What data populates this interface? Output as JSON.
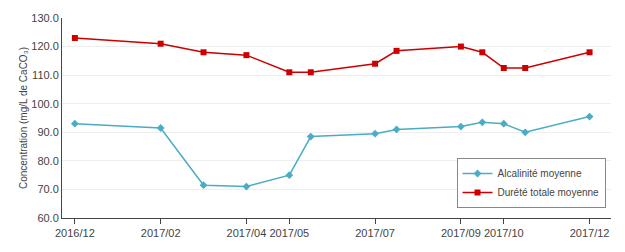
{
  "chart_data": {
    "type": "line",
    "x": [
      0,
      2,
      3,
      4,
      5,
      5.5,
      7,
      7.5,
      9,
      9.5,
      10,
      10.5,
      12
    ],
    "xlim": [
      -0.3,
      12.5
    ],
    "xticks": [
      {
        "value": 0,
        "label": "2016/12"
      },
      {
        "value": 2,
        "label": "2017/02"
      },
      {
        "value": 4,
        "label": "2017/04"
      },
      {
        "value": 5,
        "label": "2017/05"
      },
      {
        "value": 7,
        "label": "2017/07"
      },
      {
        "value": 9,
        "label": "2017/09"
      },
      {
        "value": 10,
        "label": "2017/10"
      },
      {
        "value": 12,
        "label": "2017/12"
      }
    ],
    "ylabel": "Concentration (mg/L de CaCO₃)",
    "ylim": [
      60.0,
      130.0
    ],
    "yticks": [
      {
        "value": 60,
        "label": "60.0"
      },
      {
        "value": 70,
        "label": "70.0"
      },
      {
        "value": 80,
        "label": "80.0"
      },
      {
        "value": 90,
        "label": "90.0"
      },
      {
        "value": 100,
        "label": "100.0"
      },
      {
        "value": 110,
        "label": "110.0"
      },
      {
        "value": 120,
        "label": "120.0"
      },
      {
        "value": 130,
        "label": "130.0"
      }
    ],
    "grid": "y",
    "legend": "lower right",
    "series": [
      {
        "name": "Alcalinité moyenne",
        "color": "#4BACC6",
        "marker": "diamond",
        "values": [
          93.0,
          91.5,
          71.5,
          71.0,
          75.0,
          88.5,
          89.5,
          91.0,
          92.0,
          93.5,
          93.0,
          90.0,
          95.5
        ]
      },
      {
        "name": "Durété totale moyenne",
        "color": "#CC0000",
        "marker": "square",
        "values": [
          123.0,
          121.0,
          118.0,
          117.0,
          111.0,
          111.0,
          114.0,
          118.5,
          120.0,
          118.0,
          112.5,
          112.5,
          118.0
        ]
      }
    ]
  }
}
